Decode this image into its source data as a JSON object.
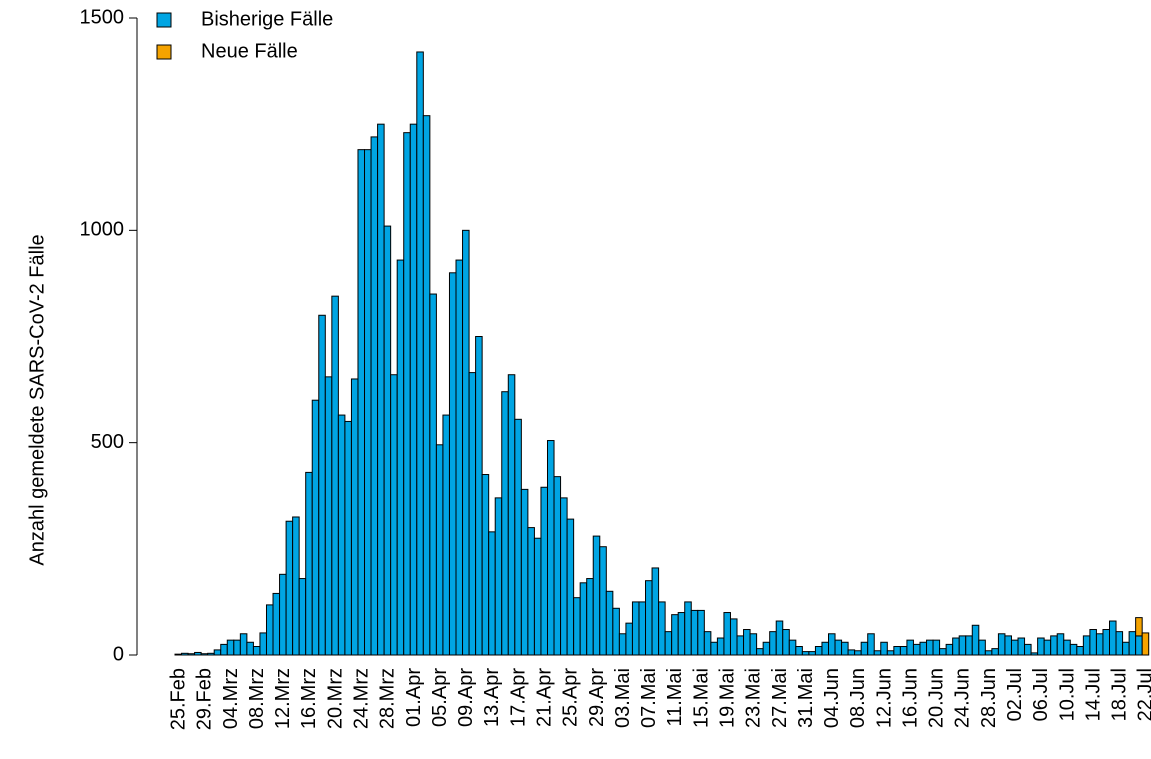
{
  "chart_data": {
    "type": "stacked-bar",
    "y_label": "Anzahl gemeldete SARS-CoV-2 Fälle",
    "ylim": [
      0,
      1500
    ],
    "yticks": [
      0,
      500,
      1000,
      1500
    ],
    "legend": "top-left",
    "categories": [
      "25.Feb",
      null,
      null,
      null,
      "29.Feb",
      null,
      null,
      null,
      "04.Mrz",
      null,
      null,
      null,
      "08.Mrz",
      null,
      null,
      null,
      "12.Mrz",
      null,
      null,
      null,
      "16.Mrz",
      null,
      null,
      null,
      "20.Mrz",
      null,
      null,
      null,
      "24.Mrz",
      null,
      null,
      null,
      "28.Mrz",
      null,
      null,
      null,
      "01.Apr",
      null,
      null,
      null,
      "05.Apr",
      null,
      null,
      null,
      "09.Apr",
      null,
      null,
      null,
      "13.Apr",
      null,
      null,
      null,
      "17.Apr",
      null,
      null,
      null,
      "21.Apr",
      null,
      null,
      null,
      "25.Apr",
      null,
      null,
      null,
      "29.Apr",
      null,
      null,
      null,
      "03.Mai",
      null,
      null,
      null,
      "07.Mai",
      null,
      null,
      null,
      "11.Mai",
      null,
      null,
      null,
      "15.Mai",
      null,
      null,
      null,
      "19.Mai",
      null,
      null,
      null,
      "23.Mai",
      null,
      null,
      null,
      "27.Mai",
      null,
      null,
      null,
      "31.Mai",
      null,
      null,
      null,
      "04.Jun",
      null,
      null,
      null,
      "08.Jun",
      null,
      null,
      null,
      "12.Jun",
      null,
      null,
      null,
      "16.Jun",
      null,
      null,
      null,
      "20.Jun",
      null,
      null,
      null,
      "24.Jun",
      null,
      null,
      null,
      "28.Jun",
      null,
      null,
      null,
      "02.Jul",
      null,
      null,
      null,
      "06.Jul",
      null,
      null,
      null,
      "10.Jul",
      null,
      null,
      null,
      "14.Jul",
      null,
      null,
      null,
      "18.Jul",
      null,
      null,
      null,
      "22.Jul"
    ],
    "series": [
      {
        "name": "Bisherige Fälle",
        "color": "#00a5e3",
        "values": [
          2,
          4,
          3,
          6,
          3,
          4,
          12,
          25,
          35,
          35,
          50,
          30,
          20,
          52,
          118,
          145,
          190,
          315,
          325,
          180,
          430,
          600,
          800,
          655,
          845,
          565,
          550,
          650,
          1190,
          1190,
          1220,
          1250,
          1010,
          660,
          930,
          1230,
          1250,
          1420,
          1270,
          850,
          495,
          565,
          900,
          930,
          1000,
          665,
          750,
          425,
          290,
          370,
          620,
          660,
          555,
          390,
          300,
          275,
          395,
          505,
          420,
          370,
          320,
          135,
          170,
          180,
          280,
          255,
          150,
          110,
          50,
          75,
          125,
          125,
          175,
          205,
          125,
          55,
          95,
          100,
          125,
          105,
          105,
          55,
          30,
          40,
          100,
          85,
          45,
          60,
          50,
          15,
          30,
          55,
          80,
          60,
          35,
          20,
          8,
          8,
          20,
          30,
          50,
          35,
          30,
          12,
          10,
          30,
          50,
          10,
          30,
          10,
          20,
          20,
          35,
          25,
          30,
          35,
          35,
          15,
          25,
          40,
          45,
          45,
          70,
          35,
          10,
          15,
          50,
          45,
          35,
          40,
          25,
          5,
          40,
          35,
          45,
          50,
          35,
          25,
          20,
          45,
          60,
          50,
          60,
          80,
          55,
          30,
          55,
          45,
          0
        ]
      },
      {
        "name": "Neue Fälle",
        "color": "#f5a300",
        "values": [
          0,
          0,
          0,
          0,
          0,
          0,
          0,
          0,
          0,
          0,
          0,
          0,
          0,
          0,
          0,
          0,
          0,
          0,
          0,
          0,
          0,
          0,
          0,
          0,
          0,
          0,
          0,
          0,
          0,
          0,
          0,
          0,
          0,
          0,
          0,
          0,
          0,
          0,
          0,
          0,
          0,
          0,
          0,
          0,
          0,
          0,
          0,
          0,
          0,
          0,
          0,
          0,
          0,
          0,
          0,
          0,
          0,
          0,
          0,
          0,
          0,
          0,
          0,
          0,
          0,
          0,
          0,
          0,
          0,
          0,
          0,
          0,
          0,
          0,
          0,
          0,
          0,
          0,
          0,
          0,
          0,
          0,
          0,
          0,
          0,
          0,
          0,
          0,
          0,
          0,
          0,
          0,
          0,
          0,
          0,
          0,
          0,
          0,
          0,
          0,
          0,
          0,
          0,
          0,
          0,
          0,
          0,
          0,
          0,
          0,
          0,
          0,
          0,
          0,
          0,
          0,
          0,
          0,
          0,
          0,
          0,
          0,
          0,
          0,
          0,
          0,
          0,
          0,
          0,
          0,
          0,
          0,
          0,
          0,
          0,
          0,
          0,
          0,
          0,
          0,
          0,
          0,
          0,
          0,
          0,
          0,
          0,
          43,
          52
        ]
      }
    ]
  }
}
